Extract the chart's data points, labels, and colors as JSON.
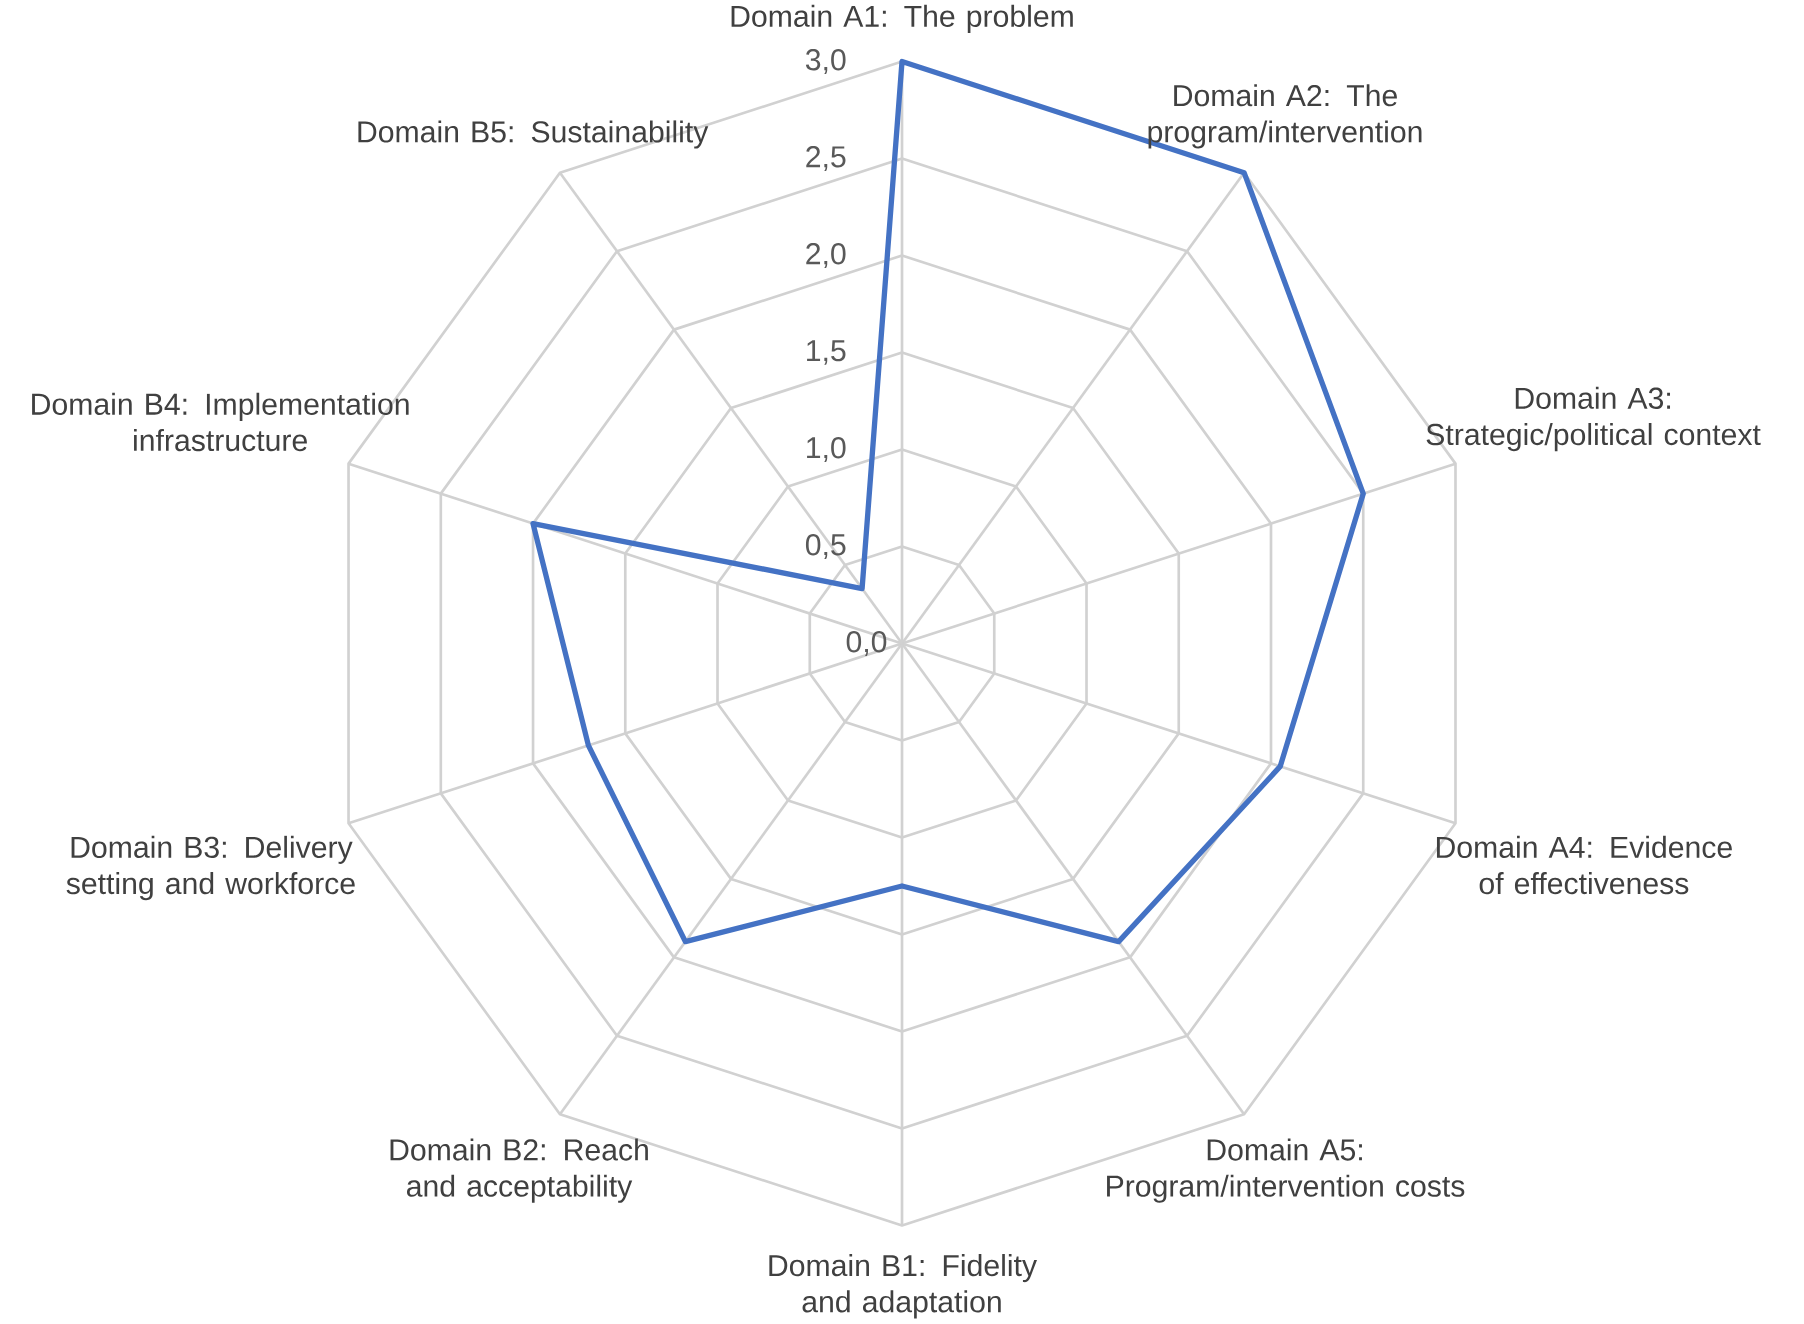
{
  "chart_data": {
    "type": "radar",
    "categories": [
      "Domain A1: The problem",
      "Domain A2: The program/intervention",
      "Domain A3: Strategic/political context",
      "Domain A4: Evidence of effectiveness",
      "Domain A5: Program/intervention costs",
      "Domain B1: Fidelity and adaptation",
      "Domain B2: Reach and acceptability",
      "Domain B3: Delivery setting and workforce",
      "Domain B4: Implementation infrastructure",
      "Domain B5: Sustainability"
    ],
    "series": [
      {
        "color": "#4472c4",
        "values": [
          3.0,
          3.0,
          2.5,
          2.05,
          1.9,
          1.25,
          1.9,
          1.7,
          2.0,
          0.35
        ]
      }
    ],
    "ylim": [
      0,
      3
    ],
    "yticks": [
      {
        "value": 0,
        "label": "0,0"
      },
      {
        "value": 0.5,
        "label": "0,5"
      },
      {
        "value": 1,
        "label": "1,0"
      },
      {
        "value": 1.5,
        "label": "1,5"
      },
      {
        "value": 2,
        "label": "2,0"
      },
      {
        "value": 2.5,
        "label": "2,5"
      },
      {
        "value": 3,
        "label": "3,0"
      }
    ],
    "grid": true
  }
}
